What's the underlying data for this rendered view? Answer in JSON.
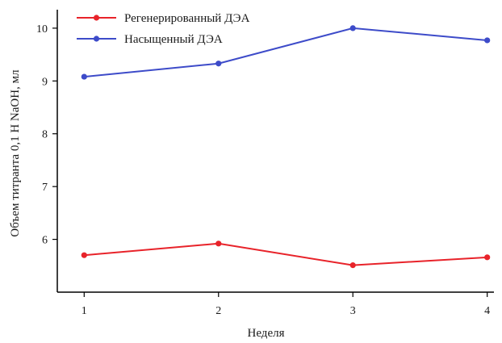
{
  "chart_data": {
    "type": "line",
    "xlabel": "Неделя",
    "ylabel": "Объем титранта 0,1 Н NaOH, мл",
    "x": [
      1,
      2,
      3,
      4
    ],
    "x_ticks": [
      "1",
      "2",
      "3",
      "4"
    ],
    "xlim": [
      0.8,
      4.05
    ],
    "ylim": [
      5.0,
      10.35
    ],
    "y_ticks": [
      "6",
      "7",
      "8",
      "9",
      "10"
    ],
    "grid": false,
    "legend_position": "top-left",
    "series": [
      {
        "name": "Регенерированный ДЭА",
        "color": "#e8232a",
        "values": [
          5.7,
          5.92,
          5.51,
          5.66
        ]
      },
      {
        "name": "Насыщенный ДЭА",
        "color": "#3d4bc9",
        "values": [
          9.08,
          9.33,
          10.0,
          9.77
        ]
      }
    ]
  }
}
